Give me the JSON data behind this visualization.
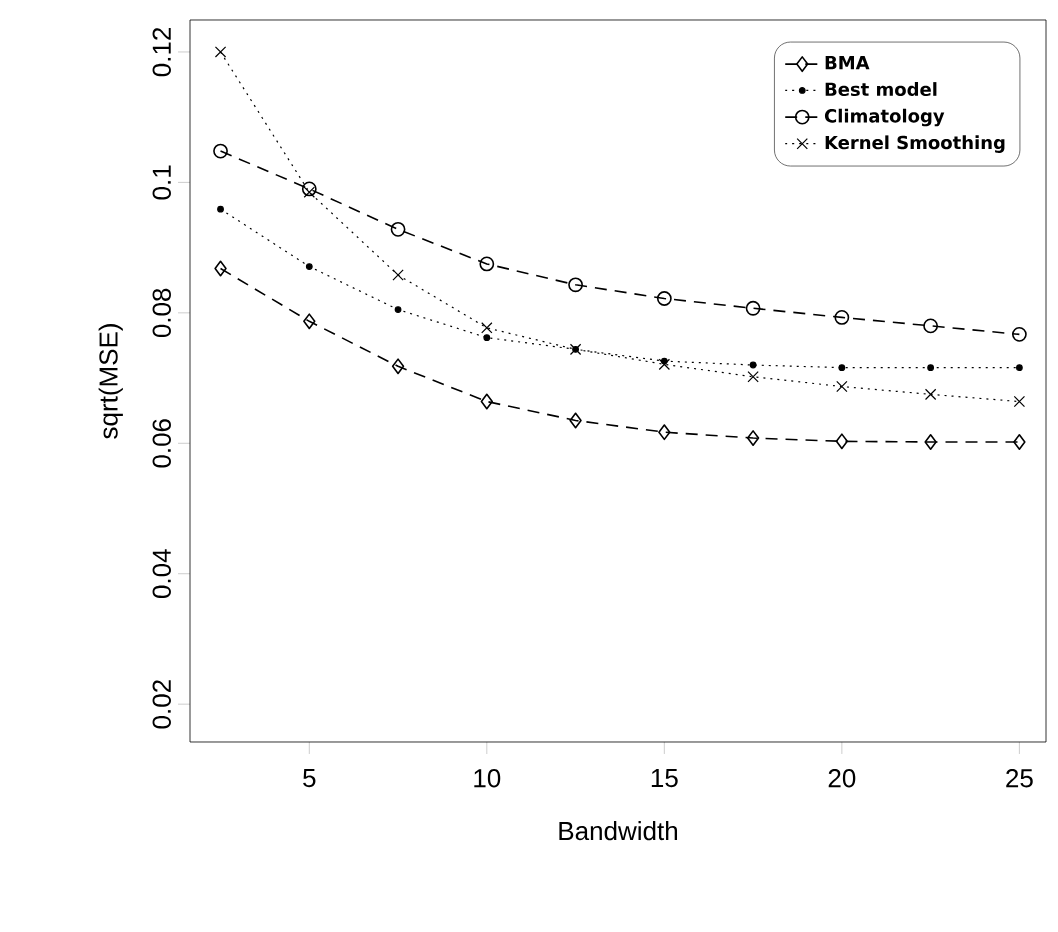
{
  "chart_data": {
    "type": "line",
    "xlabel": "Bandwidth",
    "ylabel": "sqrt(MSE)",
    "x": [
      2.5,
      5,
      7.5,
      10,
      12.5,
      15,
      17.5,
      20,
      22.5,
      25
    ],
    "xlim": [
      1.64,
      25.75
    ],
    "xticks": [
      5,
      10,
      15,
      20,
      25
    ],
    "ylim": [
      0.0142,
      0.1249
    ],
    "yticks": [
      0.02,
      0.04,
      0.06,
      0.08,
      0.1,
      0.12
    ],
    "legend": "top right",
    "grid": false,
    "series": [
      {
        "name": "BMA",
        "color": "#000000",
        "marker": "diamond",
        "line_style": "dashed",
        "values": [
          0.0868,
          0.0787,
          0.0718,
          0.0664,
          0.0635,
          0.0617,
          0.0608,
          0.0603,
          0.0602,
          0.0602
        ]
      },
      {
        "name": "Best model",
        "color": "#000000",
        "marker": "dot",
        "line_style": "dotted",
        "values": [
          0.0959,
          0.0871,
          0.0805,
          0.0762,
          0.0744,
          0.0726,
          0.072,
          0.0716,
          0.0716,
          0.0716
        ]
      },
      {
        "name": "Climatology",
        "color": "#000000",
        "marker": "circle",
        "line_style": "dashed",
        "values": [
          0.1048,
          0.099,
          0.0928,
          0.0875,
          0.0843,
          0.0822,
          0.0807,
          0.0793,
          0.078,
          0.0767
        ]
      },
      {
        "name": "Kernel Smoothing",
        "color": "#000000",
        "marker": "cross",
        "line_style": "dotted",
        "values": [
          0.12,
          0.0985,
          0.0858,
          0.0777,
          0.0744,
          0.0721,
          0.0702,
          0.0687,
          0.0675,
          0.0664
        ]
      }
    ]
  }
}
